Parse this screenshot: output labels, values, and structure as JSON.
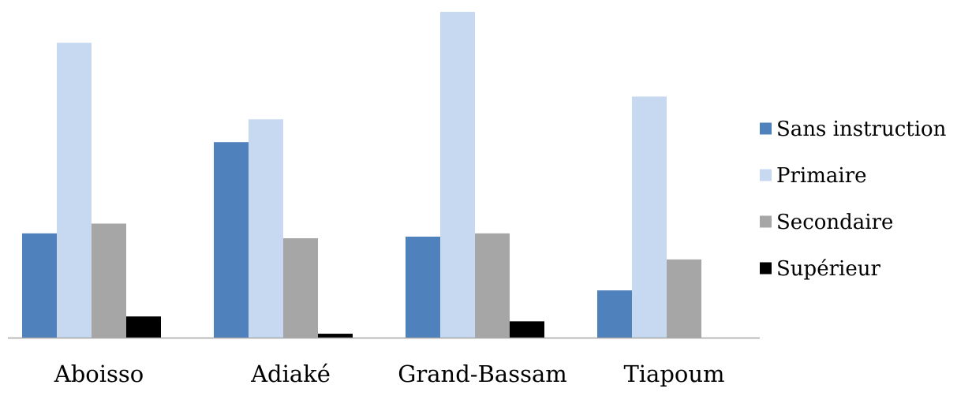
{
  "chart_data": {
    "type": "bar",
    "title": "",
    "xlabel": "",
    "ylabel": "",
    "categories": [
      "Aboisso",
      "Adiaké",
      "Grand-Bassam",
      "Tiapoum"
    ],
    "ylim": [
      0,
      100
    ],
    "grid": false,
    "legend_position": "right",
    "series": [
      {
        "name": "Sans instruction",
        "color": "#4F81BD",
        "values": [
          32,
          60,
          31,
          14.5
        ]
      },
      {
        "name": "Primaire",
        "color": "#C6D9F1",
        "values": [
          90.5,
          67,
          100,
          74
        ]
      },
      {
        "name": "Secondaire",
        "color": "#A6A6A6",
        "values": [
          35,
          30.5,
          32,
          24
        ]
      },
      {
        "name": "Supérieur",
        "color": "#000000",
        "values": [
          6.5,
          1.2,
          5,
          0
        ]
      }
    ],
    "axis_color": "#A6A6A6"
  }
}
